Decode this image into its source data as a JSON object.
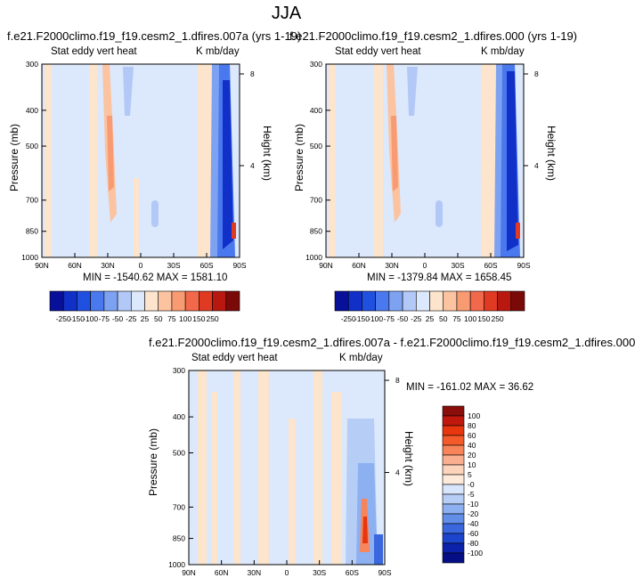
{
  "main_title": "JJA",
  "chart_data": [
    {
      "type": "heatmap",
      "title": "f.e21.F2000climo.f19_f19.cesm2_1.dfires.007a (yrs 1-19)",
      "left_label": "Stat eddy vert heat",
      "right_label": "K mb/day",
      "ylabel": "Pressure (mb)",
      "ylabel_right": "Height (km)",
      "x_ticks": [
        "90N",
        "60N",
        "30N",
        "0",
        "30S",
        "60S",
        "90S"
      ],
      "y_ticks": [
        "300",
        "400",
        "500",
        "700",
        "850",
        "1000"
      ],
      "y_ticks_right": [
        "8",
        "4"
      ],
      "stats": "MIN = -1540.62   MAX = 1581.10",
      "colorbar_labels": [
        "-250",
        "-150",
        "-100",
        "-75",
        "-50",
        "-25",
        "25",
        "50",
        "75",
        "100",
        "150",
        "250"
      ]
    },
    {
      "type": "heatmap",
      "title": "f.e21.F2000climo.f19_f19.cesm2_1.dfires.000 (yrs 1-19)",
      "left_label": "Stat eddy vert heat",
      "right_label": "K mb/day",
      "ylabel": "Pressure (mb)",
      "ylabel_right": "Height (km)",
      "x_ticks": [
        "90N",
        "60N",
        "30N",
        "0",
        "30S",
        "60S",
        "90S"
      ],
      "y_ticks": [
        "300",
        "400",
        "500",
        "700",
        "850",
        "1000"
      ],
      "y_ticks_right": [
        "8",
        "4"
      ],
      "stats": "MIN = -1379.84   MAX = 1658.45",
      "colorbar_labels": [
        "-250",
        "-150",
        "-100",
        "-75",
        "-50",
        "-25",
        "25",
        "50",
        "75",
        "100",
        "150",
        "250"
      ]
    },
    {
      "type": "heatmap",
      "title": "f.e21.F2000climo.f19_f19.cesm2_1.dfires.007a - f.e21.F2000climo.f19_f19.cesm2_1.dfires.000",
      "left_label": "Stat eddy vert heat",
      "right_label": "K mb/day",
      "ylabel": "Pressure (mb)",
      "ylabel_right": "Height (km)",
      "x_ticks": [
        "90N",
        "60N",
        "30N",
        "0",
        "30S",
        "60S",
        "90S"
      ],
      "y_ticks": [
        "300",
        "400",
        "500",
        "700",
        "850",
        "1000"
      ],
      "y_ticks_right": [
        "8",
        "4"
      ],
      "stats": "MIN = -161.02   MAX =  36.62",
      "colorbar_labels": [
        "100",
        "80",
        "60",
        "40",
        "20",
        "10",
        "5",
        "-0",
        "-5",
        "-10",
        "-20",
        "-40",
        "-60",
        "-80",
        "-100"
      ]
    }
  ],
  "colors": {
    "top_scale": [
      "#08109a",
      "#1030c8",
      "#2050e0",
      "#4a78ee",
      "#7ea2f2",
      "#b2c8f6",
      "#dce8fb",
      "#fde4cc",
      "#fbc3a0",
      "#f89a72",
      "#f2684a",
      "#e03a22",
      "#b81810",
      "#7a0a08"
    ],
    "diff_scale": [
      "#8a0e0a",
      "#c0180c",
      "#e8360e",
      "#f45a2a",
      "#f8845a",
      "#fab090",
      "#fcd4bc",
      "#fdeadb",
      "#d8e6fb",
      "#b6cdf6",
      "#8db0f0",
      "#628ee8",
      "#3a66de",
      "#1c44cc",
      "#0c22aa",
      "#050e84"
    ],
    "background_blue": "#dce8fb",
    "background_peach": "#fde4cc"
  }
}
